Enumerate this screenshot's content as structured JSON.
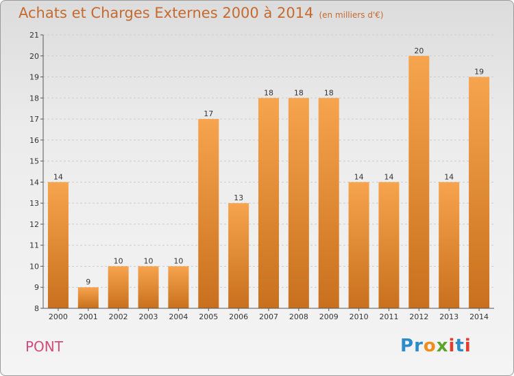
{
  "title": "Achats et Charges Externes 2000 à 2014",
  "unit": "(en milliers d'€)",
  "place": "PONT",
  "logo": {
    "letters": [
      "P",
      "r",
      "o",
      "x",
      "i",
      "t",
      "i"
    ],
    "colors": [
      "#2e8bc9",
      "#2e8bc9",
      "#f08c1a",
      "#5aa52a",
      "#e23c2c",
      "#2e8bc9",
      "#e23c2c"
    ]
  },
  "colors": {
    "bar_top": "#f7a44e",
    "bar_bottom": "#c8701d",
    "axis": "#555555",
    "grid": "#cccccc",
    "text": "#333333"
  },
  "chart_data": {
    "type": "bar",
    "categories": [
      "2000",
      "2001",
      "2002",
      "2003",
      "2004",
      "2005",
      "2006",
      "2007",
      "2008",
      "2009",
      "2010",
      "2011",
      "2012",
      "2013",
      "2014"
    ],
    "values": [
      14,
      9,
      10,
      10,
      10,
      17,
      13,
      18,
      18,
      18,
      14,
      14,
      20,
      14,
      19
    ],
    "ylim": [
      8,
      21
    ],
    "yticks": [
      8,
      9,
      10,
      11,
      12,
      13,
      14,
      15,
      16,
      17,
      18,
      19,
      20,
      21
    ],
    "grid": true,
    "data_labels": true
  }
}
